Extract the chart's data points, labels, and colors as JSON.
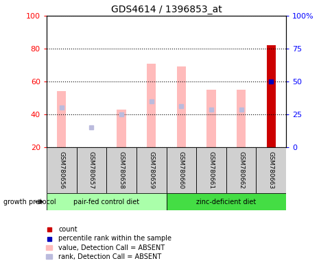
{
  "title": "GDS4614 / 1396853_at",
  "samples": [
    "GSM780656",
    "GSM780657",
    "GSM780658",
    "GSM780659",
    "GSM780660",
    "GSM780661",
    "GSM780662",
    "GSM780663"
  ],
  "value_absent_bot": [
    20,
    null,
    20,
    20,
    20,
    20,
    20,
    null
  ],
  "value_absent_top": [
    54,
    null,
    43,
    71,
    69,
    55,
    55,
    null
  ],
  "rank_absent_y": [
    44,
    32,
    40,
    48,
    45,
    43,
    43,
    null
  ],
  "count_val": 82,
  "count_idx": 7,
  "percentile_val": 50,
  "percentile_idx": 7,
  "ylim_left": [
    20,
    100
  ],
  "ylim_right": [
    0,
    100
  ],
  "yticks_left": [
    20,
    40,
    60,
    80,
    100
  ],
  "ytick_labels_right": [
    "0",
    "25",
    "50",
    "75",
    "100%"
  ],
  "yticks_right": [
    0,
    25,
    50,
    75,
    100
  ],
  "group1_label": "pair-fed control diet",
  "group2_label": "zinc-deficient diet",
  "group1_indices": [
    0,
    1,
    2,
    3
  ],
  "group2_indices": [
    4,
    5,
    6,
    7
  ],
  "protocol_label": "growth protocol",
  "legend_items": [
    "count",
    "percentile rank within the sample",
    "value, Detection Call = ABSENT",
    "rank, Detection Call = ABSENT"
  ],
  "color_value_absent": "#ffbbbb",
  "color_rank_absent": "#bbbbdd",
  "color_count": "#cc0000",
  "color_percentile": "#0000bb",
  "bar_width": 0.3,
  "group1_bg": "#aaffaa",
  "group2_bg": "#44dd44",
  "sample_box_bg": "#d0d0d0",
  "title_fontsize": 10,
  "tick_fontsize": 8,
  "label_fontsize": 7
}
